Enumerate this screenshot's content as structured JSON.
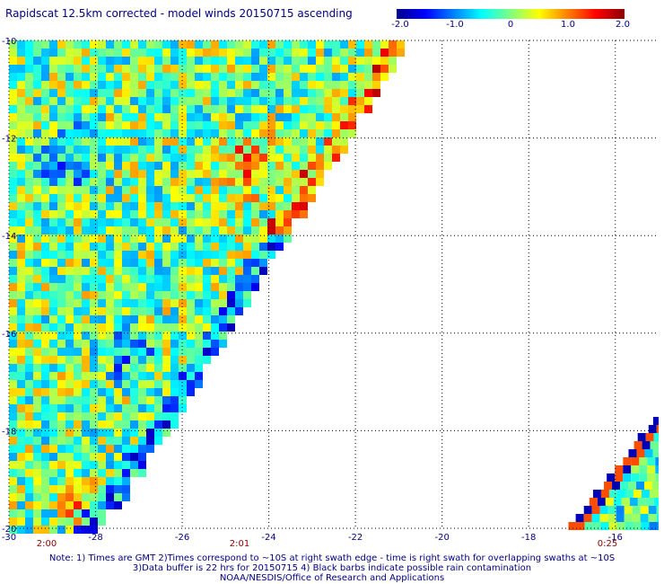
{
  "title": "Rapidscat 12.5km corrected - model winds 20150715 ascending",
  "colorbar": {
    "labels": [
      "-2.0",
      "-1.0",
      "0",
      "1.0",
      "2.0"
    ],
    "min": -2.0,
    "max": 2.0,
    "stops": [
      "#00008b",
      "#0000ff",
      "#0080ff",
      "#00ffff",
      "#80ff80",
      "#ffff00",
      "#ff8000",
      "#ff0000",
      "#8b0000"
    ]
  },
  "map": {
    "x_ticks": [
      "-30",
      "-28",
      "-26",
      "-24",
      "-22",
      "-20",
      "-18",
      "-16"
    ],
    "y_ticks": [
      "-10",
      "-12",
      "-14",
      "-16",
      "-18",
      "-20"
    ],
    "lon_range": [
      -30,
      -15
    ],
    "lat_range": [
      -20,
      -10
    ],
    "grid": "dotted",
    "time_labels": [
      {
        "text": "2:00",
        "lon": -29.2
      },
      {
        "text": "2:01",
        "lon": -25.3
      },
      {
        "text": "0:25",
        "lon": -16.6
      }
    ]
  },
  "notes": {
    "line1": "Note: 1) Times are GMT 2)Times correspond to ~10S at right swath edge - time is right swath for overlapping swaths at ~10S",
    "line2": "3)Data buffer is 22 hrs for 20150715 4) Black barbs indicate possible rain contamination",
    "line3": "NOAA/NESDIS/Office of Research and Applications"
  }
}
